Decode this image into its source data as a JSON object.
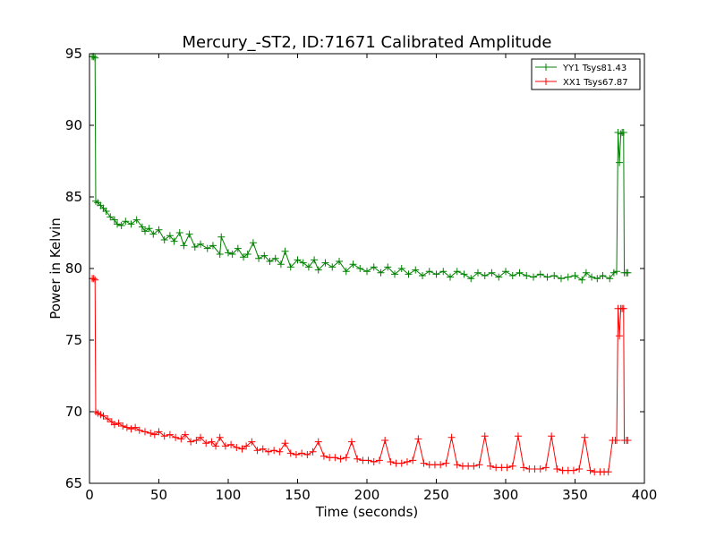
{
  "chart_data": {
    "type": "line",
    "title": "Mercury_-ST2, ID:71671 Calibrated Amplitude",
    "xlabel": "Time (seconds)",
    "ylabel": "Power in Kelvin",
    "xlim": [
      0,
      400
    ],
    "ylim": [
      65,
      95
    ],
    "xticks": [
      0,
      50,
      100,
      150,
      200,
      250,
      300,
      350,
      400
    ],
    "yticks": [
      65,
      70,
      75,
      80,
      85,
      90,
      95
    ],
    "grid": false,
    "legend_position": "top-right",
    "series": [
      {
        "name": "YY1 Tsys81.43",
        "color": "#008000",
        "marker": "+",
        "points": [
          [
            2,
            94.8
          ],
          [
            3,
            94.8
          ],
          [
            4,
            94.7
          ],
          [
            4.5,
            84.7
          ],
          [
            6,
            84.6
          ],
          [
            8,
            84.4
          ],
          [
            10,
            84.2
          ],
          [
            12,
            84.0
          ],
          [
            15,
            83.6
          ],
          [
            18,
            83.4
          ],
          [
            20,
            83.1
          ],
          [
            23,
            83.0
          ],
          [
            26,
            83.3
          ],
          [
            30,
            83.1
          ],
          [
            34,
            83.4
          ],
          [
            38,
            82.9
          ],
          [
            40,
            82.6
          ],
          [
            43,
            82.8
          ],
          [
            46,
            82.4
          ],
          [
            50,
            82.7
          ],
          [
            54,
            82.0
          ],
          [
            58,
            82.3
          ],
          [
            61,
            81.9
          ],
          [
            65,
            82.5
          ],
          [
            68,
            81.6
          ],
          [
            72,
            82.4
          ],
          [
            76,
            81.5
          ],
          [
            80,
            81.7
          ],
          [
            85,
            81.4
          ],
          [
            89,
            81.6
          ],
          [
            94,
            81.0
          ],
          [
            95,
            82.2
          ],
          [
            100,
            81.1
          ],
          [
            103,
            81.0
          ],
          [
            107,
            81.4
          ],
          [
            111,
            80.8
          ],
          [
            114,
            81.0
          ],
          [
            118,
            81.8
          ],
          [
            122,
            80.7
          ],
          [
            126,
            80.9
          ],
          [
            130,
            80.5
          ],
          [
            134,
            80.7
          ],
          [
            138,
            80.3
          ],
          [
            141,
            81.2
          ],
          [
            145,
            80.1
          ],
          [
            150,
            80.6
          ],
          [
            154,
            80.4
          ],
          [
            158,
            80.1
          ],
          [
            162,
            80.6
          ],
          [
            165,
            79.9
          ],
          [
            170,
            80.4
          ],
          [
            175,
            80.1
          ],
          [
            180,
            80.5
          ],
          [
            185,
            79.8
          ],
          [
            190,
            80.3
          ],
          [
            195,
            80.0
          ],
          [
            200,
            79.8
          ],
          [
            205,
            80.1
          ],
          [
            210,
            79.7
          ],
          [
            215,
            80.1
          ],
          [
            220,
            79.6
          ],
          [
            225,
            80.0
          ],
          [
            230,
            79.6
          ],
          [
            235,
            79.9
          ],
          [
            240,
            79.5
          ],
          [
            245,
            79.8
          ],
          [
            250,
            79.6
          ],
          [
            255,
            79.8
          ],
          [
            260,
            79.4
          ],
          [
            265,
            79.8
          ],
          [
            270,
            79.6
          ],
          [
            275,
            79.3
          ],
          [
            280,
            79.7
          ],
          [
            285,
            79.5
          ],
          [
            290,
            79.7
          ],
          [
            295,
            79.4
          ],
          [
            300,
            79.8
          ],
          [
            305,
            79.5
          ],
          [
            310,
            79.7
          ],
          [
            315,
            79.5
          ],
          [
            320,
            79.4
          ],
          [
            325,
            79.6
          ],
          [
            330,
            79.4
          ],
          [
            335,
            79.5
          ],
          [
            340,
            79.3
          ],
          [
            345,
            79.4
          ],
          [
            350,
            79.5
          ],
          [
            355,
            79.2
          ],
          [
            358,
            79.7
          ],
          [
            362,
            79.4
          ],
          [
            366,
            79.3
          ],
          [
            370,
            79.5
          ],
          [
            375,
            79.3
          ],
          [
            378,
            79.7
          ],
          [
            380,
            79.8
          ],
          [
            381,
            89.5
          ],
          [
            382,
            87.4
          ],
          [
            383,
            89.4
          ],
          [
            384,
            89.5
          ],
          [
            385,
            89.5
          ],
          [
            385.5,
            79.7
          ],
          [
            387,
            79.7
          ],
          [
            388,
            79.7
          ]
        ]
      },
      {
        "name": "XX1 Tsys67.87",
        "color": "#ff0000",
        "marker": "+",
        "points": [
          [
            2,
            79.3
          ],
          [
            3,
            79.3
          ],
          [
            4,
            79.2
          ],
          [
            4.5,
            70.0
          ],
          [
            6,
            69.9
          ],
          [
            8,
            69.8
          ],
          [
            10,
            69.7
          ],
          [
            13,
            69.5
          ],
          [
            16,
            69.3
          ],
          [
            18,
            69.1
          ],
          [
            21,
            69.2
          ],
          [
            24,
            69.0
          ],
          [
            27,
            68.9
          ],
          [
            30,
            68.8
          ],
          [
            33,
            68.9
          ],
          [
            36,
            68.7
          ],
          [
            40,
            68.6
          ],
          [
            44,
            68.5
          ],
          [
            47,
            68.4
          ],
          [
            50,
            68.6
          ],
          [
            54,
            68.3
          ],
          [
            58,
            68.4
          ],
          [
            62,
            68.2
          ],
          [
            66,
            68.1
          ],
          [
            69,
            68.4
          ],
          [
            73,
            67.9
          ],
          [
            77,
            68.0
          ],
          [
            80,
            68.2
          ],
          [
            84,
            67.8
          ],
          [
            88,
            67.9
          ],
          [
            91,
            67.6
          ],
          [
            94,
            68.2
          ],
          [
            98,
            67.6
          ],
          [
            102,
            67.7
          ],
          [
            106,
            67.5
          ],
          [
            110,
            67.4
          ],
          [
            113,
            67.6
          ],
          [
            117,
            67.9
          ],
          [
            121,
            67.3
          ],
          [
            125,
            67.4
          ],
          [
            129,
            67.2
          ],
          [
            133,
            67.3
          ],
          [
            137,
            67.2
          ],
          [
            141,
            67.8
          ],
          [
            145,
            67.1
          ],
          [
            149,
            67.0
          ],
          [
            153,
            67.1
          ],
          [
            157,
            67.0
          ],
          [
            161,
            67.2
          ],
          [
            165,
            67.9
          ],
          [
            169,
            66.9
          ],
          [
            173,
            66.8
          ],
          [
            177,
            66.8
          ],
          [
            181,
            66.7
          ],
          [
            185,
            66.8
          ],
          [
            189,
            67.9
          ],
          [
            193,
            66.7
          ],
          [
            197,
            66.6
          ],
          [
            201,
            66.6
          ],
          [
            205,
            66.5
          ],
          [
            209,
            66.6
          ],
          [
            213,
            68.0
          ],
          [
            217,
            66.5
          ],
          [
            221,
            66.4
          ],
          [
            225,
            66.4
          ],
          [
            229,
            66.5
          ],
          [
            233,
            66.6
          ],
          [
            237,
            68.1
          ],
          [
            241,
            66.4
          ],
          [
            245,
            66.3
          ],
          [
            249,
            66.3
          ],
          [
            253,
            66.3
          ],
          [
            257,
            66.4
          ],
          [
            261,
            68.2
          ],
          [
            265,
            66.3
          ],
          [
            269,
            66.2
          ],
          [
            273,
            66.2
          ],
          [
            277,
            66.2
          ],
          [
            281,
            66.3
          ],
          [
            285,
            68.3
          ],
          [
            289,
            66.2
          ],
          [
            293,
            66.1
          ],
          [
            297,
            66.1
          ],
          [
            301,
            66.1
          ],
          [
            305,
            66.2
          ],
          [
            309,
            68.3
          ],
          [
            313,
            66.1
          ],
          [
            317,
            66.0
          ],
          [
            321,
            66.0
          ],
          [
            325,
            66.0
          ],
          [
            329,
            66.1
          ],
          [
            333,
            68.3
          ],
          [
            337,
            66.0
          ],
          [
            341,
            65.9
          ],
          [
            345,
            65.9
          ],
          [
            349,
            65.9
          ],
          [
            353,
            66.0
          ],
          [
            357,
            68.2
          ],
          [
            361,
            65.9
          ],
          [
            364,
            65.8
          ],
          [
            368,
            65.8
          ],
          [
            371,
            65.8
          ],
          [
            374,
            65.8
          ],
          [
            377,
            68.0
          ],
          [
            379,
            68.0
          ],
          [
            380,
            68.0
          ],
          [
            381,
            77.2
          ],
          [
            382,
            75.3
          ],
          [
            383,
            77.2
          ],
          [
            384,
            77.2
          ],
          [
            385,
            77.2
          ],
          [
            385.5,
            68.0
          ],
          [
            387,
            68.0
          ],
          [
            388,
            68.0
          ]
        ]
      }
    ]
  }
}
